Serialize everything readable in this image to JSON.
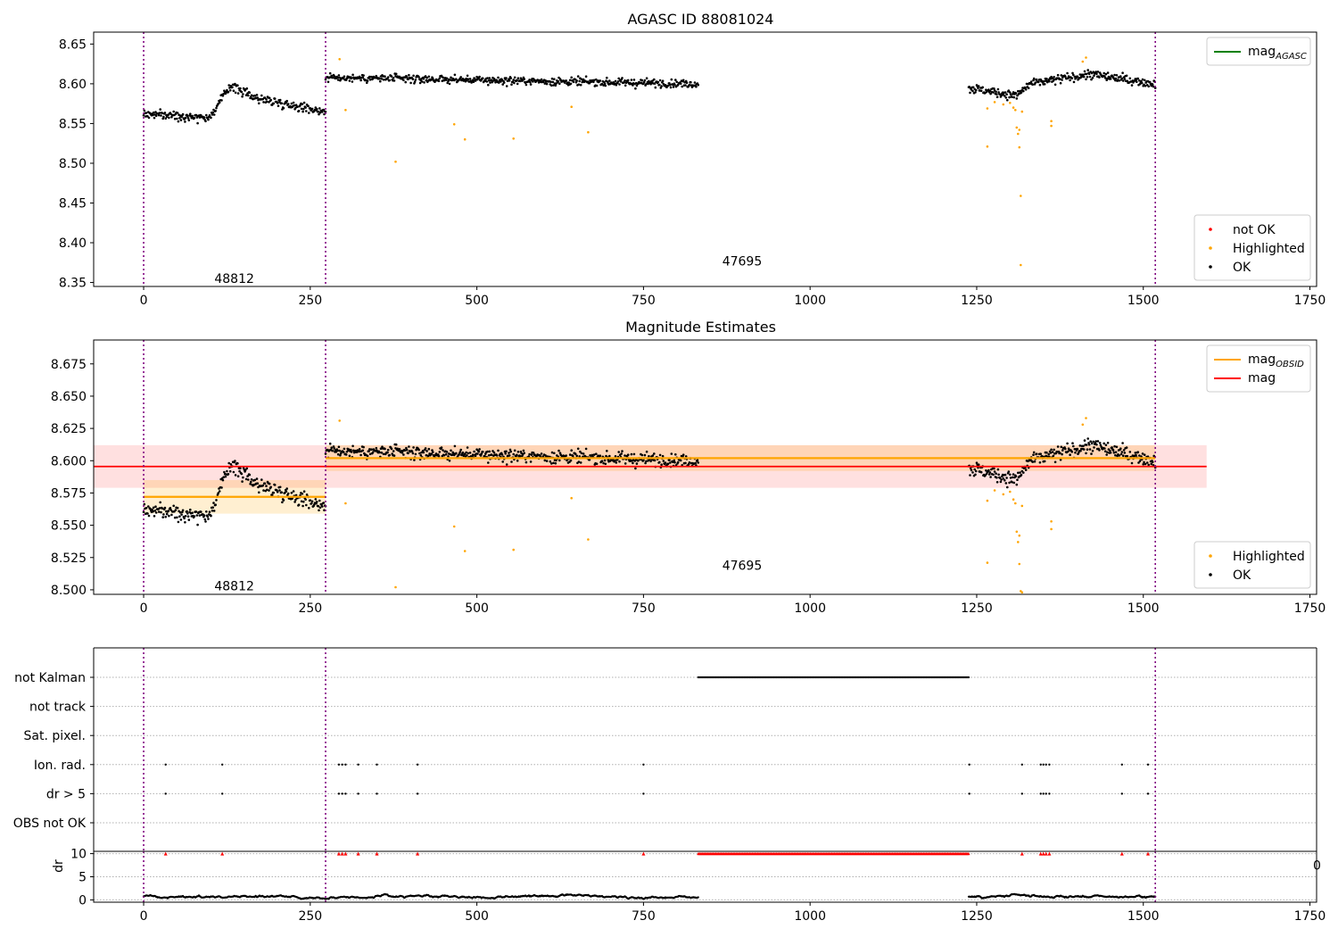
{
  "chart_data": [
    {
      "type": "scatter",
      "title": "AGASC ID 88081024",
      "xlim": [
        -75,
        1760
      ],
      "ylim": [
        8.345,
        8.665
      ],
      "x_ticks": [
        0,
        250,
        500,
        750,
        1000,
        1250,
        1500,
        1750
      ],
      "y_ticks": [
        8.35,
        8.4,
        8.45,
        8.5,
        8.55,
        8.6,
        8.65
      ],
      "grid": false,
      "obsid_boundaries": [
        0,
        273,
        1518
      ],
      "obsid_labels": [
        {
          "text": "48812",
          "x": 136,
          "y": 8.355
        },
        {
          "text": "47695",
          "x": 898,
          "y": 8.377
        }
      ],
      "legends": [
        {
          "placement": "top-right",
          "entries": [
            {
              "label": "mag",
              "sub": "AGASC",
              "color": "#008000",
              "kind": "line"
            }
          ]
        },
        {
          "placement": "bottom-right",
          "entries": [
            {
              "label": "not OK",
              "color": "#ff0000",
              "kind": "dot"
            },
            {
              "label": "Highlighted",
              "color": "#ffa500",
              "kind": "dot"
            },
            {
              "label": "OK",
              "color": "#000000",
              "kind": "dot"
            }
          ]
        }
      ],
      "series": [
        {
          "name": "OK",
          "color": "#000000",
          "segments": [
            {
              "x": [
                0,
                273
              ],
              "levels": [
                [
                  0,
                  8.562
                ],
                [
                  100,
                  8.558
                ],
                [
                  130,
                  8.598
                ],
                [
                  170,
                  8.582
                ],
                [
                  273,
                  8.565
                ]
              ],
              "scatter": 0.008
            },
            {
              "x": [
                273,
                832
              ],
              "levels": [
                [
                  273,
                  8.608
                ],
                [
                  832,
                  8.6
                ]
              ],
              "scatter": 0.007
            },
            {
              "x": [
                1238,
                1518
              ],
              "levels": [
                [
                  1238,
                  8.595
                ],
                [
                  1310,
                  8.585
                ],
                [
                  1330,
                  8.6
                ],
                [
                  1420,
                  8.612
                ],
                [
                  1518,
                  8.6
                ]
              ],
              "scatter": 0.008
            }
          ]
        },
        {
          "name": "Highlighted",
          "color": "#ffa500",
          "points": [
            [
              294,
              8.631
            ],
            [
              303,
              8.567
            ],
            [
              378,
              8.502
            ],
            [
              466,
              8.549
            ],
            [
              482,
              8.53
            ],
            [
              555,
              8.531
            ],
            [
              642,
              8.571
            ],
            [
              667,
              8.539
            ],
            [
              1266,
              8.569
            ],
            [
              1266,
              8.521
            ],
            [
              1277,
              8.577
            ],
            [
              1290,
              8.574
            ],
            [
              1300,
              8.576
            ],
            [
              1305,
              8.57
            ],
            [
              1308,
              8.567
            ],
            [
              1310,
              8.545
            ],
            [
              1312,
              8.537
            ],
            [
              1314,
              8.542
            ],
            [
              1314,
              8.52
            ],
            [
              1316,
              8.459
            ],
            [
              1316,
              8.372
            ],
            [
              1318,
              8.565
            ],
            [
              1362,
              8.553
            ],
            [
              1362,
              8.547
            ],
            [
              1409,
              8.628
            ],
            [
              1414,
              8.633
            ]
          ]
        }
      ]
    },
    {
      "type": "scatter",
      "title": "Magnitude Estimates",
      "xlim": [
        -75,
        1760
      ],
      "ylim": [
        8.4965,
        8.6935
      ],
      "x_ticks": [
        0,
        250,
        500,
        750,
        1000,
        1250,
        1500,
        1750
      ],
      "y_ticks": [
        8.5,
        8.525,
        8.55,
        8.575,
        8.6,
        8.625,
        8.65,
        8.675
      ],
      "grid": false,
      "obsid_boundaries": [
        0,
        273,
        1518
      ],
      "obsid_labels": [
        {
          "text": "48812",
          "x": 136,
          "y": 8.503
        },
        {
          "text": "47695",
          "x": 898,
          "y": 8.519
        }
      ],
      "mag": {
        "value": 8.5955,
        "band": [
          8.579,
          8.612
        ],
        "x": [
          -75,
          1595
        ],
        "color": "#ff0000"
      },
      "mag_obsid": [
        {
          "x": [
            0,
            273
          ],
          "value": 8.572,
          "band": [
            8.559,
            8.585
          ]
        },
        {
          "x": [
            273,
            1518
          ],
          "value": 8.602,
          "band": [
            8.592,
            8.612
          ]
        }
      ],
      "legends": [
        {
          "placement": "top-right",
          "entries": [
            {
              "label": "mag",
              "sub": "OBSID",
              "color": "#ffa500",
              "kind": "line"
            },
            {
              "label": "mag",
              "sub": "",
              "color": "#ff0000",
              "kind": "line"
            }
          ]
        },
        {
          "placement": "bottom-right",
          "entries": [
            {
              "label": "Highlighted",
              "color": "#ffa500",
              "kind": "dot"
            },
            {
              "label": "OK",
              "color": "#000000",
              "kind": "dot"
            }
          ]
        }
      ],
      "series": [
        {
          "name": "OK",
          "color": "#000000",
          "segments": [
            {
              "x": [
                0,
                273
              ],
              "levels": [
                [
                  0,
                  8.562
                ],
                [
                  100,
                  8.558
                ],
                [
                  130,
                  8.598
                ],
                [
                  170,
                  8.582
                ],
                [
                  273,
                  8.565
                ]
              ],
              "scatter": 0.008
            },
            {
              "x": [
                273,
                832
              ],
              "levels": [
                [
                  273,
                  8.608
                ],
                [
                  832,
                  8.6
                ]
              ],
              "scatter": 0.007
            },
            {
              "x": [
                1238,
                1518
              ],
              "levels": [
                [
                  1238,
                  8.595
                ],
                [
                  1310,
                  8.585
                ],
                [
                  1330,
                  8.6
                ],
                [
                  1420,
                  8.612
                ],
                [
                  1518,
                  8.6
                ]
              ],
              "scatter": 0.008
            }
          ]
        },
        {
          "name": "Highlighted",
          "color": "#ffa500",
          "points": [
            [
              294,
              8.631
            ],
            [
              303,
              8.567
            ],
            [
              378,
              8.502
            ],
            [
              466,
              8.549
            ],
            [
              482,
              8.53
            ],
            [
              555,
              8.531
            ],
            [
              642,
              8.571
            ],
            [
              667,
              8.539
            ],
            [
              1266,
              8.569
            ],
            [
              1266,
              8.521
            ],
            [
              1277,
              8.577
            ],
            [
              1290,
              8.574
            ],
            [
              1300,
              8.576
            ],
            [
              1305,
              8.57
            ],
            [
              1308,
              8.567
            ],
            [
              1310,
              8.545
            ],
            [
              1312,
              8.537
            ],
            [
              1314,
              8.542
            ],
            [
              1314,
              8.52
            ],
            [
              1316,
              8.499
            ],
            [
              1318,
              8.498
            ],
            [
              1318,
              8.565
            ],
            [
              1362,
              8.553
            ],
            [
              1362,
              8.547
            ],
            [
              1409,
              8.628
            ],
            [
              1414,
              8.633
            ]
          ]
        }
      ]
    },
    {
      "type": "scatter",
      "title": "",
      "xlim": [
        -75,
        1760
      ],
      "categories": [
        "not Kalman",
        "not track",
        "Sat. pixel.",
        "Ion. rad.",
        "dr > 5",
        "OBS not OK"
      ],
      "grid": true,
      "obsid_boundaries": [
        0,
        273,
        1518
      ],
      "flags": {
        "not Kalman": {
          "ranges": [
            [
              832,
              1238
            ]
          ],
          "points": []
        },
        "not track": {
          "ranges": [],
          "points": []
        },
        "Sat. pixel.": {
          "ranges": [],
          "points": []
        },
        "Ion. rad.": {
          "ranges": [],
          "points": [
            33,
            118,
            293,
            298,
            303,
            322,
            350,
            411,
            750,
            1239,
            1318,
            1346,
            1350,
            1354,
            1359,
            1468,
            1507
          ]
        },
        "dr > 5": {
          "ranges": [],
          "points": [
            33,
            118,
            293,
            298,
            303,
            322,
            350,
            411,
            750,
            1239,
            1318,
            1346,
            1350,
            1354,
            1359,
            1468,
            1507
          ]
        },
        "OBS not OK": {
          "ranges": [],
          "points": []
        }
      }
    },
    {
      "type": "scatter",
      "title": "",
      "ylabel": "dr",
      "xlim": [
        -75,
        1760
      ],
      "ylim": [
        -0.5,
        10.5
      ],
      "x_ticks": [
        0,
        250,
        500,
        750,
        1000,
        1250,
        1500,
        1750
      ],
      "y_ticks": [
        0,
        5,
        10
      ],
      "grid": true,
      "clipped_label": "0",
      "dr_baseline": {
        "segments": [
          [
            0,
            832
          ],
          [
            1238,
            1518
          ]
        ],
        "mean": 0.7,
        "scatter": 0.45
      },
      "dr_clipped": {
        "value": 10,
        "color": "#ff0000",
        "ranges": [
          [
            832,
            1238
          ]
        ],
        "points": [
          33,
          118,
          293,
          298,
          303,
          322,
          350,
          411,
          750,
          1318,
          1346,
          1350,
          1354,
          1359,
          1468,
          1507
        ]
      }
    }
  ]
}
